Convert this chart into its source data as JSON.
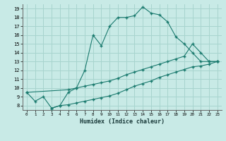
{
  "xlabel": "Humidex (Indice chaleur)",
  "bg_color": "#c8eae6",
  "line_color": "#1a7a6e",
  "grid_color": "#a8d4ce",
  "xlim": [
    -0.5,
    23.5
  ],
  "ylim": [
    7.5,
    19.5
  ],
  "xticks": [
    0,
    1,
    2,
    3,
    4,
    5,
    6,
    7,
    8,
    9,
    10,
    11,
    12,
    13,
    14,
    15,
    16,
    17,
    18,
    19,
    20,
    21,
    22,
    23
  ],
  "yticks": [
    8,
    9,
    10,
    11,
    12,
    13,
    14,
    15,
    16,
    17,
    18,
    19
  ],
  "line1_x": [
    0,
    1,
    2,
    3,
    4,
    5,
    6,
    7,
    8,
    9,
    10,
    11,
    12,
    13,
    14,
    15,
    16,
    17,
    18,
    19,
    20,
    21,
    22,
    23
  ],
  "line1_y": [
    9.5,
    8.5,
    9.0,
    7.7,
    8.0,
    9.5,
    10.0,
    12.0,
    16.0,
    14.8,
    17.0,
    18.0,
    18.0,
    18.2,
    19.2,
    18.5,
    18.3,
    17.5,
    15.8,
    15.0,
    14.0,
    13.0,
    13.0,
    13.0
  ],
  "line2_x": [
    0,
    5,
    6,
    7,
    8,
    9,
    10,
    11,
    12,
    13,
    14,
    15,
    16,
    17,
    18,
    19,
    20,
    21,
    22,
    23
  ],
  "line2_y": [
    9.5,
    9.8,
    10.0,
    10.2,
    10.4,
    10.6,
    10.8,
    11.1,
    11.5,
    11.8,
    12.1,
    12.4,
    12.7,
    13.0,
    13.3,
    13.6,
    15.0,
    14.0,
    13.0,
    13.0
  ],
  "line3_x": [
    3,
    4,
    5,
    6,
    7,
    8,
    9,
    10,
    11,
    12,
    13,
    14,
    15,
    16,
    17,
    18,
    19,
    20,
    21,
    22,
    23
  ],
  "line3_y": [
    7.7,
    8.0,
    8.1,
    8.3,
    8.5,
    8.7,
    8.9,
    9.1,
    9.4,
    9.8,
    10.2,
    10.5,
    10.8,
    11.2,
    11.5,
    11.8,
    12.1,
    12.4,
    12.5,
    12.7,
    13.0
  ]
}
